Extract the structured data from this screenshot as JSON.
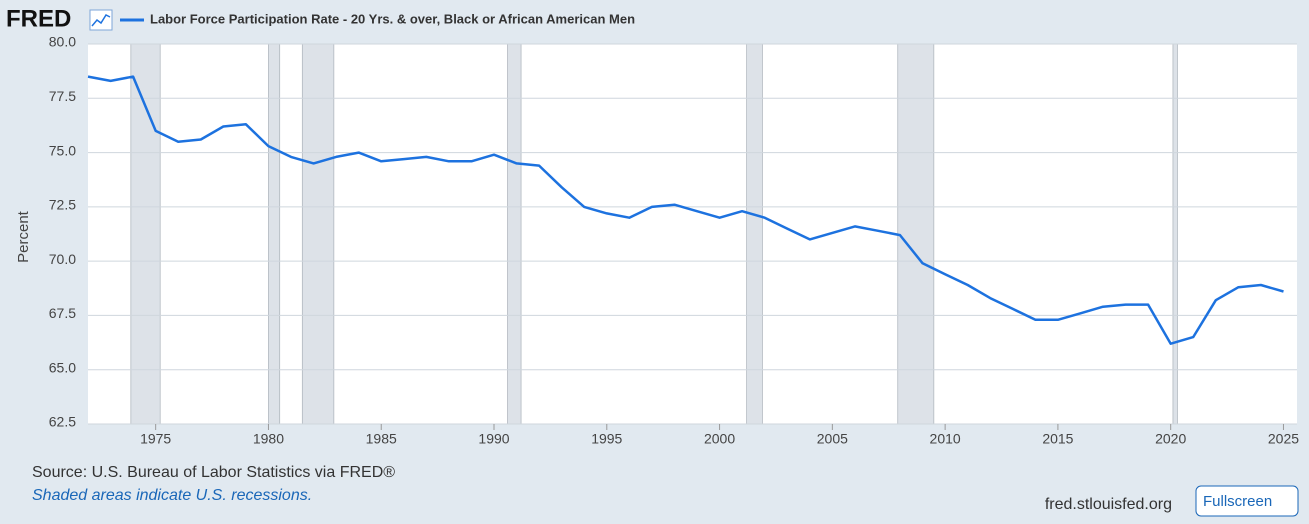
{
  "chart_data": {
    "type": "line",
    "logo": "FRED",
    "series": [
      {
        "name": "Labor Force Participation Rate - 20 Yrs. & over, Black or African American Men",
        "color": "#1d72df",
        "values": [
          78.5,
          78.3,
          78.5,
          76.0,
          75.5,
          75.6,
          76.2,
          76.3,
          75.3,
          74.8,
          74.5,
          74.8,
          75.0,
          74.6,
          74.7,
          74.8,
          74.6,
          74.6,
          74.9,
          74.5,
          74.4,
          73.4,
          72.5,
          72.2,
          72.0,
          72.5,
          72.6,
          72.3,
          72.0,
          72.3,
          72.0,
          71.5,
          71.0,
          71.3,
          71.6,
          71.4,
          71.2,
          69.9,
          69.4,
          68.9,
          68.3,
          67.8,
          67.3,
          67.3,
          67.6,
          67.9,
          68.0,
          68.0,
          66.2,
          66.5,
          68.2,
          68.8,
          68.9,
          68.6
        ]
      }
    ],
    "x": [
      1972,
      1973,
      1974,
      1975,
      1976,
      1977,
      1978,
      1979,
      1980,
      1981,
      1982,
      1983,
      1984,
      1985,
      1986,
      1987,
      1988,
      1989,
      1990,
      1991,
      1992,
      1993,
      1994,
      1995,
      1996,
      1997,
      1998,
      1999,
      2000,
      2001,
      2002,
      2003,
      2004,
      2005,
      2006,
      2007,
      2008,
      2009,
      2010,
      2011,
      2012,
      2013,
      2014,
      2015,
      2016,
      2017,
      2018,
      2019,
      2020,
      2021,
      2022,
      2023,
      2024,
      2025
    ],
    "xlim": [
      1972,
      2025.6
    ],
    "xticks": [
      1975,
      1980,
      1985,
      1990,
      1995,
      2000,
      2005,
      2010,
      2015,
      2020,
      2025
    ],
    "ylim": [
      62.5,
      80.0
    ],
    "yticks": [
      62.5,
      {
        "value": 65,
        "label": "65.0"
      },
      67.5,
      {
        "value": 70,
        "label": "70.0"
      },
      72.5,
      {
        "value": 75,
        "label": "75.0"
      },
      77.5,
      {
        "value": 80,
        "label": "80.0"
      }
    ],
    "ylabel": "Percent",
    "grid": true,
    "recessions": [
      [
        1973.9,
        1975.2
      ],
      [
        1980.0,
        1980.5
      ],
      [
        1981.5,
        1982.9
      ],
      [
        1990.6,
        1991.2
      ],
      [
        2001.2,
        2001.9
      ],
      [
        2007.9,
        2009.5
      ],
      [
        2020.1,
        2020.3
      ]
    ],
    "source": "Source: U.S. Bureau of Labor Statistics via FRED®",
    "note": "Shaded areas indicate U.S. recessions.",
    "site": "fred.stlouisfed.org",
    "button": "Fullscreen"
  }
}
